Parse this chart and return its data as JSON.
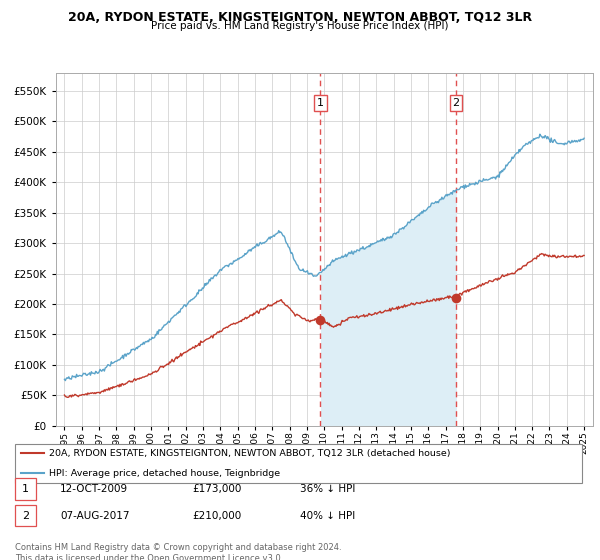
{
  "title": "20A, RYDON ESTATE, KINGSTEIGNTON, NEWTON ABBOT, TQ12 3LR",
  "subtitle": "Price paid vs. HM Land Registry's House Price Index (HPI)",
  "legend_line1": "20A, RYDON ESTATE, KINGSTEIGNTON, NEWTON ABBOT, TQ12 3LR (detached house)",
  "legend_line2": "HPI: Average price, detached house, Teignbridge",
  "footnote": "Contains HM Land Registry data © Crown copyright and database right 2024.\nThis data is licensed under the Open Government Licence v3.0.",
  "transaction1_date": "12-OCT-2009",
  "transaction1_price": "£173,000",
  "transaction1_hpi": "36% ↓ HPI",
  "transaction1_x": 2009.78,
  "transaction1_y": 173000,
  "transaction2_date": "07-AUG-2017",
  "transaction2_price": "£210,000",
  "transaction2_hpi": "40% ↓ HPI",
  "transaction2_x": 2017.6,
  "transaction2_y": 210000,
  "hpi_color": "#5ba3c9",
  "hpi_fill_color": "#ddeef6",
  "price_color": "#c0392b",
  "vline_color": "#e05050",
  "ylim": [
    0,
    580000
  ],
  "xlim_start": 1994.5,
  "xlim_end": 2025.5,
  "yticks": [
    0,
    50000,
    100000,
    150000,
    200000,
    250000,
    300000,
    350000,
    400000,
    450000,
    500000,
    550000
  ],
  "xticks": [
    1995,
    1996,
    1997,
    1998,
    1999,
    2000,
    2001,
    2002,
    2003,
    2004,
    2005,
    2006,
    2007,
    2008,
    2009,
    2010,
    2011,
    2012,
    2013,
    2014,
    2015,
    2016,
    2017,
    2018,
    2019,
    2020,
    2021,
    2022,
    2023,
    2024,
    2025
  ]
}
